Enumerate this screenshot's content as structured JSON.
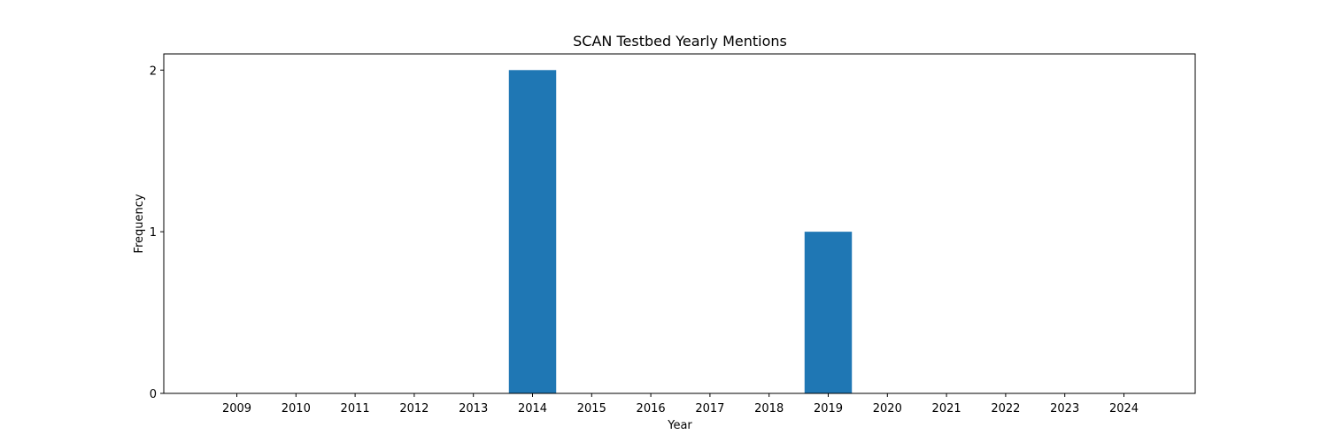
{
  "chart_data": {
    "type": "bar",
    "title": "SCAN Testbed Yearly Mentions",
    "xlabel": "Year",
    "ylabel": "Frequency",
    "categories": [
      "2009",
      "2010",
      "2011",
      "2012",
      "2013",
      "2014",
      "2015",
      "2016",
      "2017",
      "2018",
      "2019",
      "2020",
      "2021",
      "2022",
      "2023",
      "2024"
    ],
    "values": [
      0,
      0,
      0,
      0,
      0,
      2,
      0,
      0,
      0,
      0,
      1,
      0,
      0,
      0,
      0,
      0
    ],
    "ylim": [
      0,
      2.1
    ],
    "yticks": [
      0,
      1,
      2
    ],
    "bar_color": "#1f77b4",
    "grid": false,
    "legend": "none"
  }
}
